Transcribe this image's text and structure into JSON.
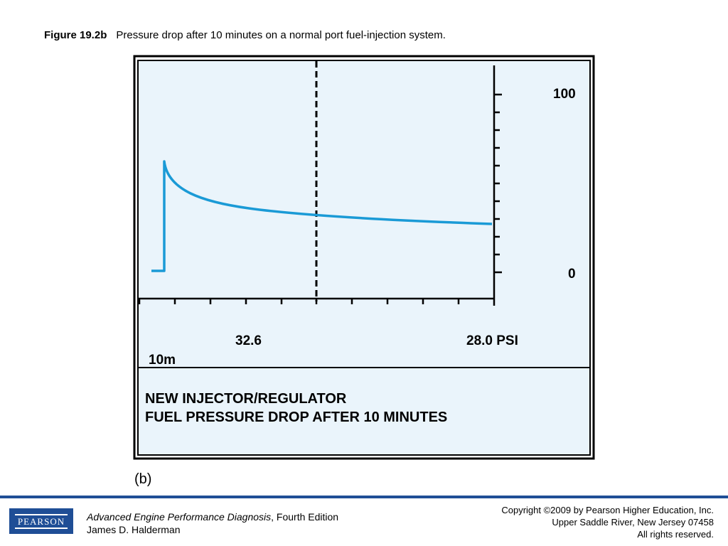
{
  "caption": {
    "figure_label": "Figure 19.2b",
    "text": "Pressure drop after 10 minutes on a normal port fuel-injection system."
  },
  "scope": {
    "scale_top": "100",
    "scale_bottom": "0",
    "reading_left": "32.6",
    "reading_right": "28.0 PSI",
    "time_label": "10m",
    "banner_line1": "NEW INJECTOR/REGULATOR",
    "banner_line2": "FUEL PRESSURE DROP AFTER 10 MINUTES",
    "screen_color": "#eaf4fb",
    "trace_color": "#1a9ad6"
  },
  "panel_tag": "(b)",
  "footer": {
    "logo_text": "PEARSON",
    "book_title": "Advanced Engine Performance Diagnosis",
    "book_edition": ", Fourth Edition",
    "author": "James D. Halderman",
    "copyright_line1": "Copyright ©2009 by Pearson Higher Education, Inc.",
    "copyright_line2": "Upper Saddle River, New Jersey 07458",
    "copyright_line3": "All rights reserved.",
    "rule_color": "#1f4e96"
  }
}
